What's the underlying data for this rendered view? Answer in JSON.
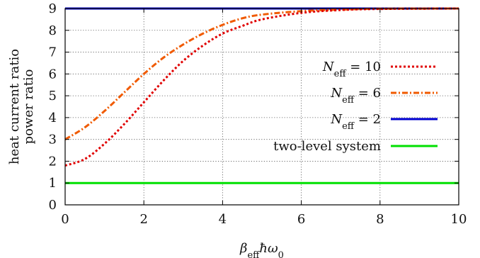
{
  "chart_data": {
    "type": "line",
    "xlabel": "β_eff ħω_0",
    "ylabel_lines": [
      "heat current ratio",
      "power ratio"
    ],
    "xlim": [
      0,
      10
    ],
    "ylim": [
      0,
      9
    ],
    "xticks": [
      0,
      2,
      4,
      6,
      8,
      10
    ],
    "yticks": [
      0,
      1,
      2,
      3,
      4,
      5,
      6,
      7,
      8,
      9
    ],
    "grid": true,
    "legend_position": "right",
    "series": [
      {
        "name_main": "N",
        "name_sub": "eff",
        "name_rest": " = 10",
        "color": "#e00000",
        "style": "dotted",
        "x": [
          0,
          0.5,
          1,
          1.5,
          2,
          2.5,
          3,
          3.5,
          4,
          4.5,
          5,
          6,
          7,
          8,
          10
        ],
        "y": [
          1.8,
          2.1,
          2.8,
          3.7,
          4.7,
          5.7,
          6.6,
          7.3,
          7.85,
          8.2,
          8.5,
          8.8,
          8.93,
          8.98,
          9.0
        ]
      },
      {
        "name_main": "N",
        "name_sub": "eff",
        "name_rest": " = 6",
        "color": "#f05a00",
        "style": "dashdot",
        "x": [
          0,
          0.5,
          1,
          1.5,
          2,
          2.5,
          3,
          3.5,
          4,
          4.5,
          5,
          6,
          7,
          8,
          10
        ],
        "y": [
          3.0,
          3.55,
          4.3,
          5.15,
          6.0,
          6.75,
          7.35,
          7.85,
          8.25,
          8.55,
          8.72,
          8.88,
          8.95,
          8.99,
          9.0
        ]
      },
      {
        "name_main": "N",
        "name_sub": "eff",
        "name_rest": " = 2",
        "color": "#0000d0",
        "style": "solid",
        "x": [
          0,
          10
        ],
        "y": [
          9,
          9
        ]
      },
      {
        "name_main": "two-level system",
        "name_sub": "",
        "name_rest": "",
        "color": "#00e000",
        "style": "solid",
        "x": [
          0,
          10
        ],
        "y": [
          1,
          1
        ]
      }
    ]
  }
}
